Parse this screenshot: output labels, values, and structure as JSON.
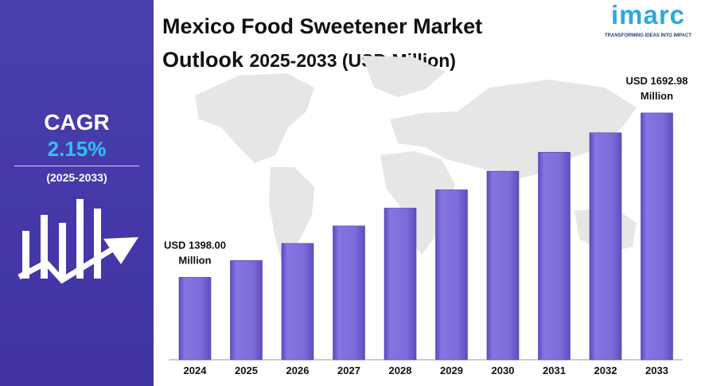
{
  "title": {
    "line1": "Mexico Food Sweetener Market",
    "line2_main": "Outlook ",
    "line2_sub": "2025-2033 (USD Million)"
  },
  "cagr": {
    "label": "CAGR",
    "value": "2.15%",
    "period": "(2025-2033)"
  },
  "logo": {
    "wordmark": "imarc",
    "tagline": "TRANSFORMING IDEAS INTO IMPACT"
  },
  "colors": {
    "panel": "#4a3fae",
    "bar": "#7b6cd9",
    "cagr_value": "#2fc3f2",
    "logo": "#2fa7e0"
  },
  "icons": [
    "bar-chart-growth-icon",
    "world-map-icon"
  ],
  "chart_data": {
    "type": "bar",
    "categories": [
      "2024",
      "2025",
      "2026",
      "2027",
      "2028",
      "2029",
      "2030",
      "2031",
      "2032",
      "2033"
    ],
    "values": [
      1398.0,
      1428.1,
      1458.8,
      1490.2,
      1522.2,
      1555.0,
      1588.4,
      1622.5,
      1657.4,
      1692.98
    ],
    "ylim": [
      1250,
      1710
    ],
    "annotations": [
      {
        "category": "2024",
        "line1": "USD 1398.00",
        "line2": "Million"
      },
      {
        "category": "2033",
        "line1": "USD 1692.98",
        "line2": "Million"
      }
    ],
    "grid": false,
    "legend": "none"
  }
}
